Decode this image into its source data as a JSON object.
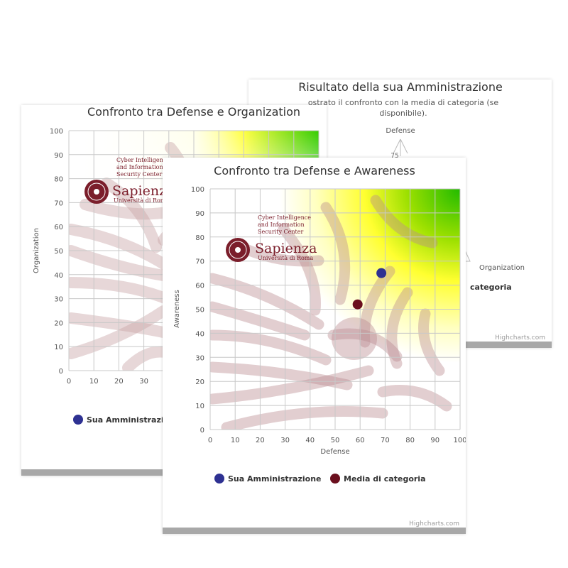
{
  "back_card": {
    "title": "Risultato della sua Amministrazione",
    "subtitle_line1": "ostrato il confronto con la media di categoria (se",
    "subtitle_line2": "disponibile).",
    "axis_top": "Defense",
    "axis_tick": "75",
    "axis_right": "Organization",
    "legend_partial": "categoria",
    "credits": "Highcharts.com"
  },
  "logo": {
    "line1": "Cyber Intelligence",
    "line2": "and Information",
    "line3": "Security Center",
    "name": "Sapienza",
    "sub": "Università di Roma",
    "color": "#7b1e2b"
  },
  "chart_data": [
    {
      "type": "scatter",
      "title": "Confronto tra Defense e Organization",
      "xlabel": "Defense",
      "ylabel": "Organization",
      "xlim": [
        0,
        100
      ],
      "ylim": [
        0,
        100
      ],
      "x_ticks_visible": [
        0,
        10,
        20,
        30
      ],
      "y_ticks": [
        0,
        10,
        20,
        30,
        40,
        50,
        60,
        70,
        80,
        90,
        100
      ],
      "grid": true,
      "legend_partial": "Sua Amministrazio",
      "series": [
        {
          "name": "Sua Amministrazione",
          "color": "#2e3192",
          "points": []
        }
      ]
    },
    {
      "type": "scatter",
      "title": "Confronto tra Defense e Awareness",
      "xlabel": "Defense",
      "ylabel": "Awareness",
      "xlim": [
        0,
        100
      ],
      "ylim": [
        0,
        100
      ],
      "x_ticks": [
        0,
        10,
        20,
        30,
        40,
        50,
        60,
        70,
        80,
        90,
        100
      ],
      "y_ticks": [
        0,
        10,
        20,
        30,
        40,
        50,
        60,
        70,
        80,
        90,
        100
      ],
      "grid": true,
      "legend_position": "bottom",
      "credits": "Highcharts.com",
      "series": [
        {
          "name": "Sua Amministrazione",
          "color": "#2e3192",
          "points": [
            [
              68.5,
              65
            ]
          ]
        },
        {
          "name": "Media di categoria",
          "color": "#6b0f1e",
          "points": [
            [
              59,
              52
            ]
          ]
        }
      ]
    }
  ]
}
